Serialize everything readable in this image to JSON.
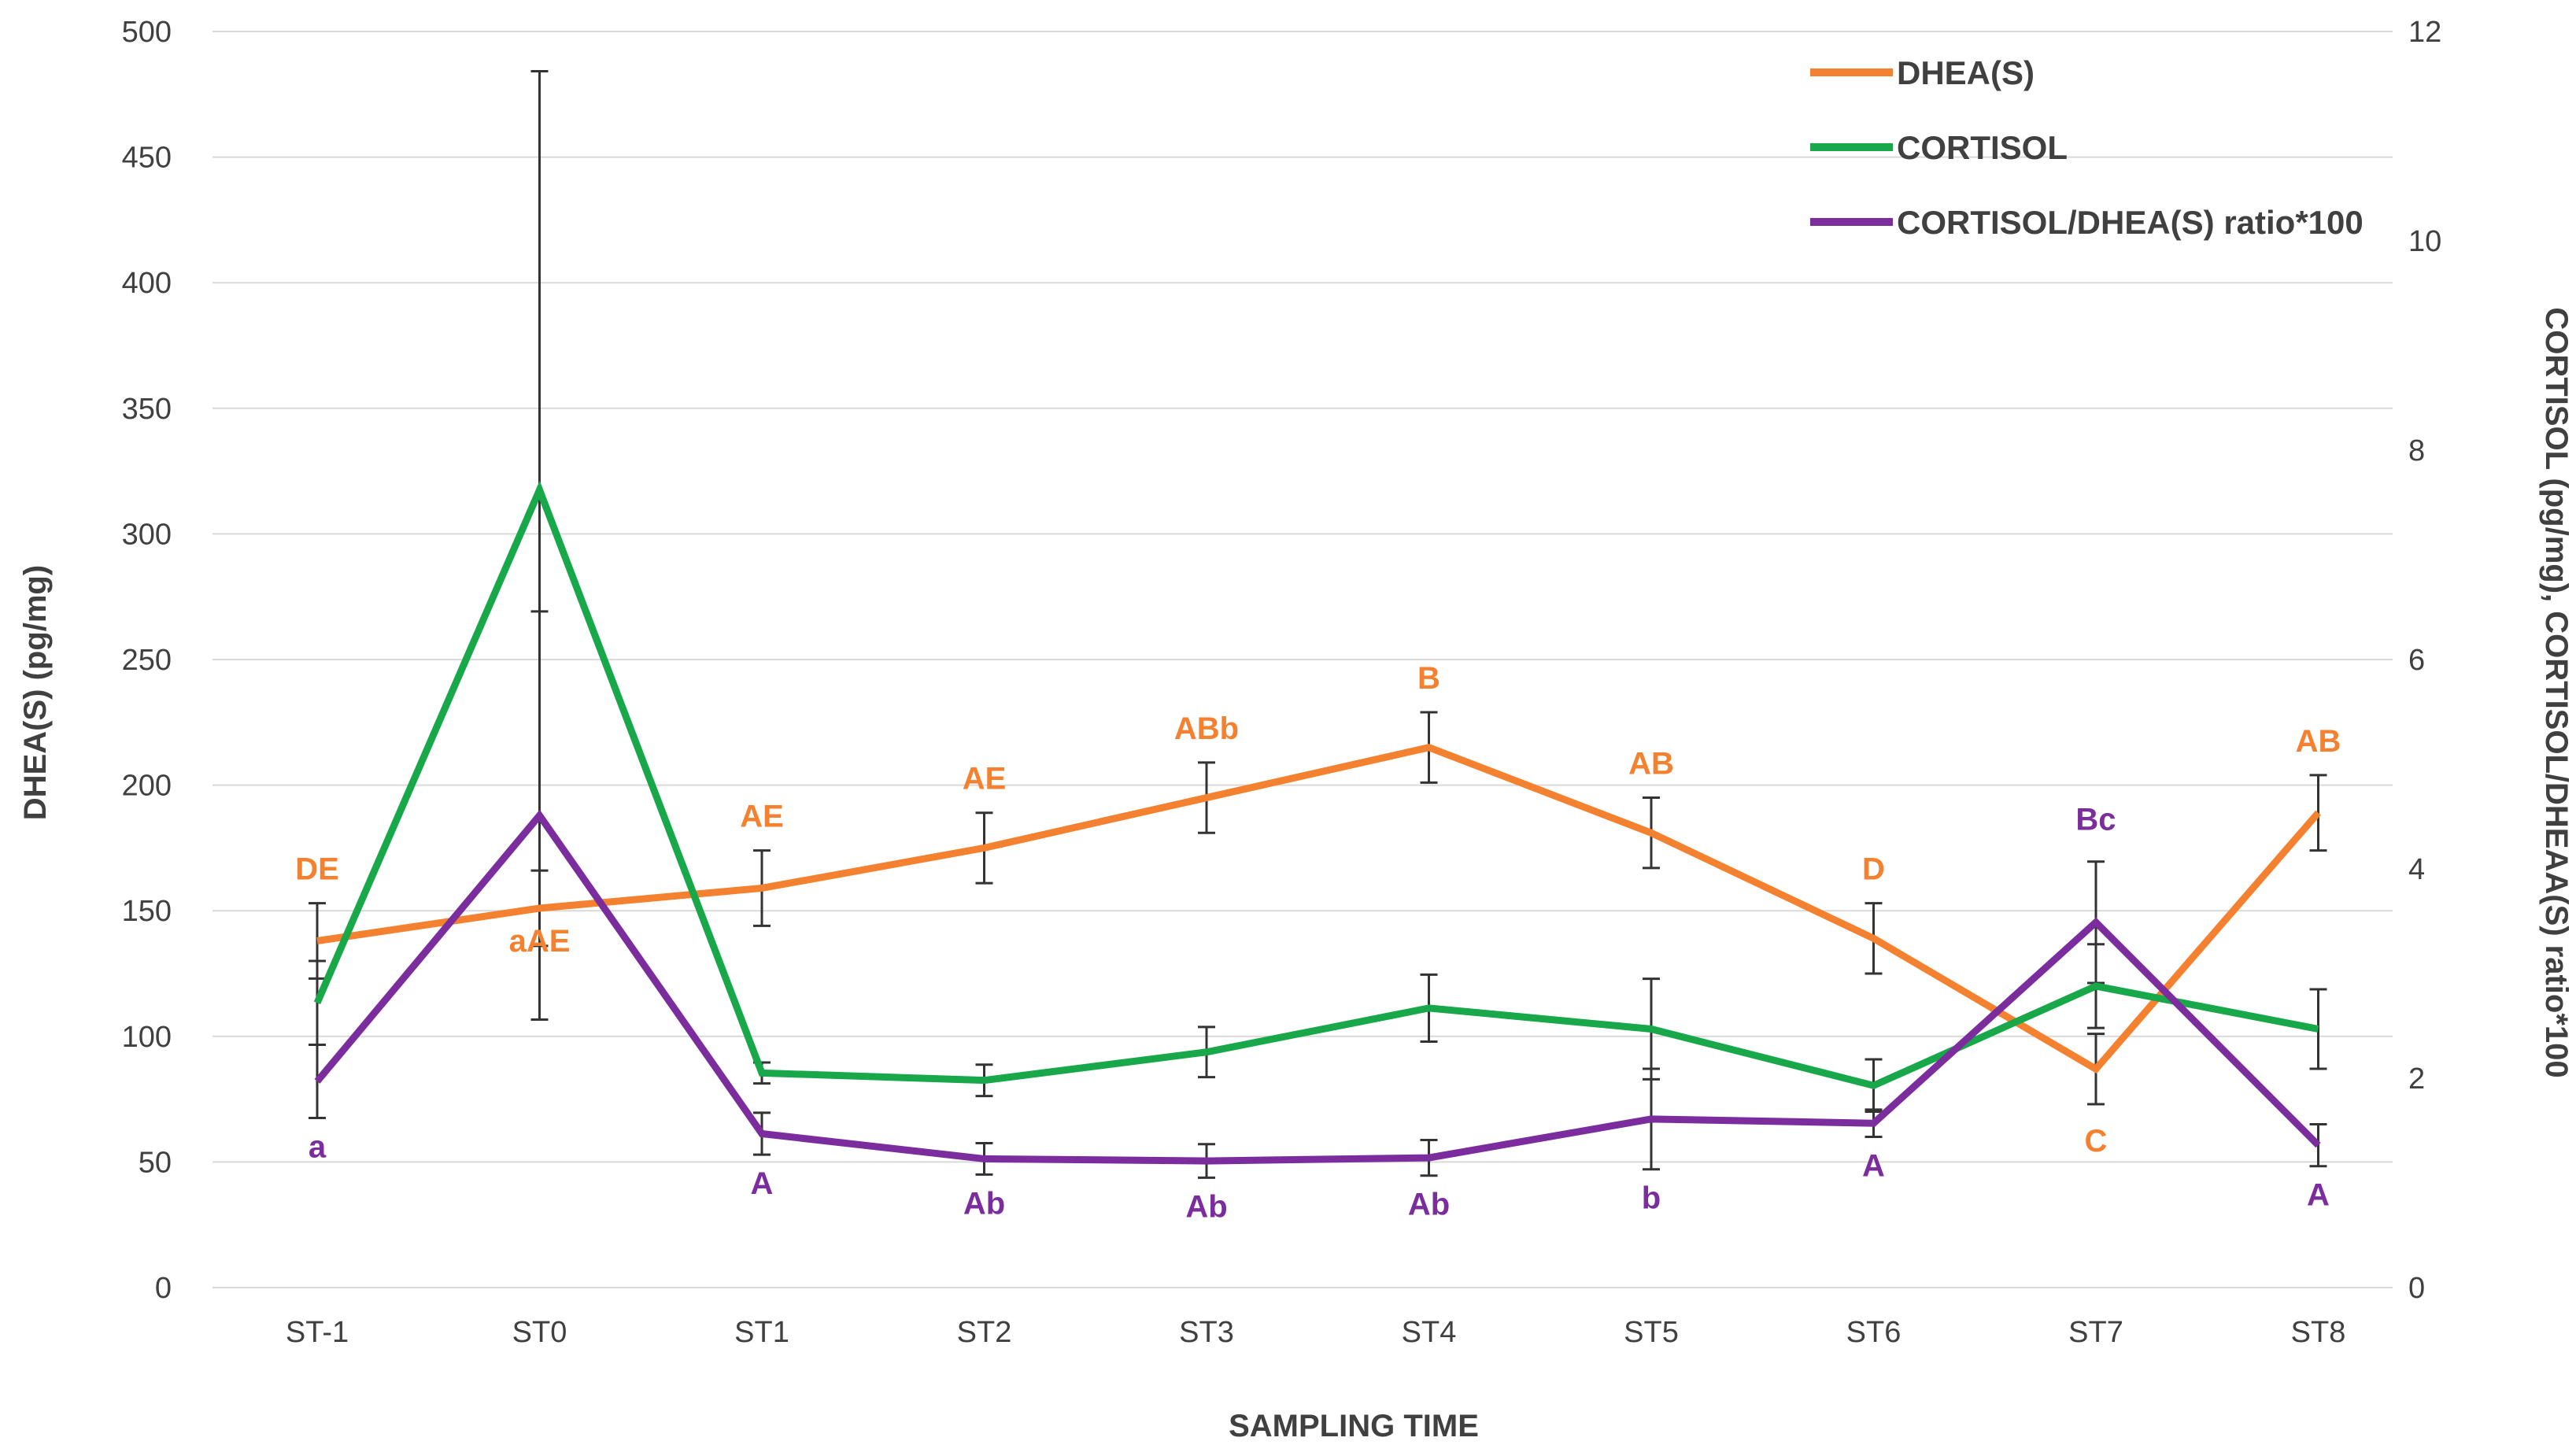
{
  "chart_data": {
    "type": "line",
    "title": "",
    "xlabel": "SAMPLING TIME",
    "ylabel_left": "DHEA(S) (pg/mg)",
    "ylabel_right": "CORTISOL (pg/mg), CORTISOL/DHEAA(S) ratio*100",
    "categories": [
      "ST-1",
      "ST0",
      "ST1",
      "ST2",
      "ST3",
      "ST4",
      "ST5",
      "ST6",
      "ST7",
      "ST8"
    ],
    "y_left": {
      "min": 0,
      "max": 500,
      "step": 50,
      "ticks": [
        "0",
        "50",
        "100",
        "150",
        "200",
        "250",
        "300",
        "350",
        "400",
        "450",
        "500"
      ]
    },
    "y_right": {
      "min": 0,
      "max": 12,
      "step": 2,
      "ticks": [
        "0",
        "2",
        "4",
        "6",
        "8",
        "10",
        "12"
      ]
    },
    "grid": true,
    "legend_position": "top-right",
    "series": [
      {
        "name": "DHEA(S)",
        "axis": "left",
        "color": "#F4812F",
        "values": [
          138,
          151,
          159,
          175,
          195,
          215,
          181,
          139,
          87,
          189
        ],
        "error": [
          15,
          15,
          15,
          14,
          14,
          14,
          14,
          14,
          14,
          15
        ],
        "labels": [
          "DE",
          "aAE",
          "AE",
          "AE",
          "ABb",
          "B",
          "AB",
          "D",
          "C",
          "AB"
        ]
      },
      {
        "name": "CORTISOL",
        "axis": "right",
        "color": "#18A84A",
        "values": [
          2.72,
          7.62,
          2.05,
          1.98,
          2.25,
          2.67,
          2.47,
          1.93,
          2.88,
          2.47
        ],
        "error": [
          0.4,
          4.0,
          0.1,
          0.15,
          0.24,
          0.32,
          0.48,
          0.25,
          0.4,
          0.38
        ],
        "labels": [
          "",
          "",
          "",
          "",
          "",
          "",
          "",
          "",
          "",
          ""
        ]
      },
      {
        "name": "CORTISOL/DHEA(S) ratio*100",
        "axis": "right",
        "color": "#7B2D9E",
        "values": [
          1.97,
          4.51,
          1.47,
          1.23,
          1.21,
          1.24,
          1.61,
          1.57,
          3.49,
          1.36
        ],
        "error": [
          0.35,
          1.95,
          0.2,
          0.15,
          0.16,
          0.17,
          0.48,
          0.13,
          0.58,
          0.2
        ],
        "labels": [
          "a",
          "",
          "A",
          "Ab",
          "Ab",
          "Ab",
          "b",
          "A",
          "Bc",
          "A"
        ]
      }
    ]
  }
}
